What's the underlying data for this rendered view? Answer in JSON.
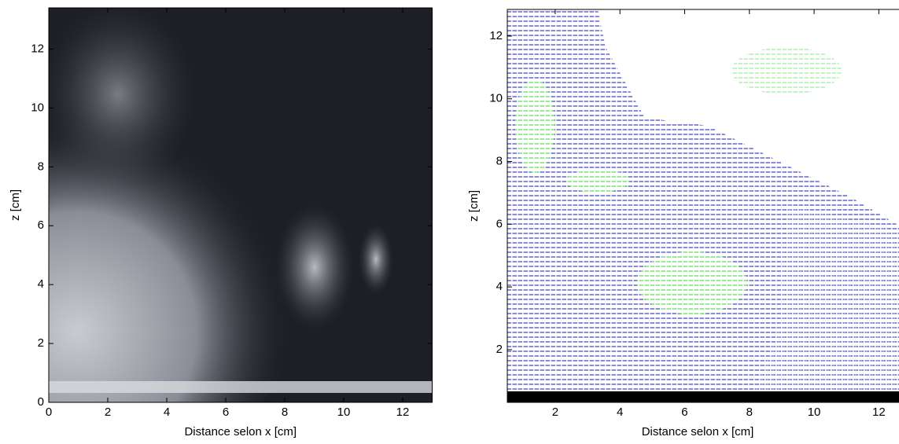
{
  "chart_data": [
    {
      "type": "image",
      "xlabel": "Distance selon x [cm]",
      "ylabel": "z [cm]",
      "xlim": [
        0,
        13
      ],
      "ylim": [
        0,
        13.4
      ],
      "xticks": [
        0,
        2,
        4,
        6,
        8,
        10,
        12
      ],
      "yticks": [
        0,
        2,
        4,
        6,
        8,
        10,
        12
      ]
    },
    {
      "type": "quiver",
      "xlabel": "Distance selon x [cm]",
      "ylabel": "z [cm]",
      "xlim": [
        0.52,
        13.0
      ],
      "ylim": [
        0.32,
        12.85
      ],
      "xticks": [
        2,
        4,
        6,
        8,
        10,
        12
      ],
      "yticks": [
        2,
        4,
        6,
        8,
        10,
        12
      ]
    }
  ]
}
